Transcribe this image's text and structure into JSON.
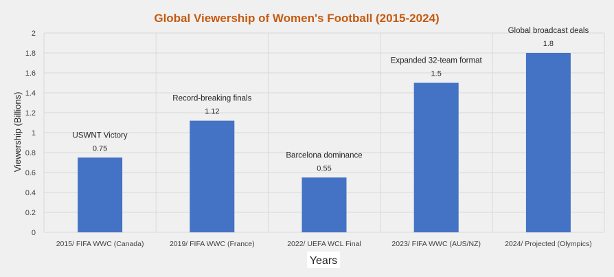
{
  "chart_data": {
    "type": "bar",
    "title": "Global Viewership of Women's Football (2015-2024)",
    "xlabel": "Years",
    "ylabel": "Viewership (Billions)",
    "ylim": [
      0,
      2
    ],
    "yticks": [
      0,
      0.2,
      0.4,
      0.6,
      0.8,
      1,
      1.2,
      1.4,
      1.6,
      1.8,
      2
    ],
    "ytick_labels": [
      "0",
      "0.2",
      "0.4",
      "0.6",
      "0.8",
      "1",
      "1.2",
      "1.4",
      "1.6",
      "1.8",
      "2"
    ],
    "categories": [
      "2015/ FIFA WWC (Canada)",
      "2019/ FIFA WWC (France)",
      "2022/ UEFA WCL Final",
      "2023/ FIFA WWC (AUS/NZ)",
      "2024/ Projected (Olympics)"
    ],
    "values": [
      0.75,
      1.12,
      0.55,
      1.5,
      1.8
    ],
    "data_labels": [
      "0.75",
      "1.12",
      "0.55",
      "1.5",
      "1.8"
    ],
    "annotations": [
      "USWNT Victory",
      "Record-breaking finals",
      "Barcelona dominance",
      "Expanded 32-team format",
      "Global broadcast deals"
    ],
    "bar_color": "#4472c4",
    "grid": true,
    "legend": "none"
  }
}
